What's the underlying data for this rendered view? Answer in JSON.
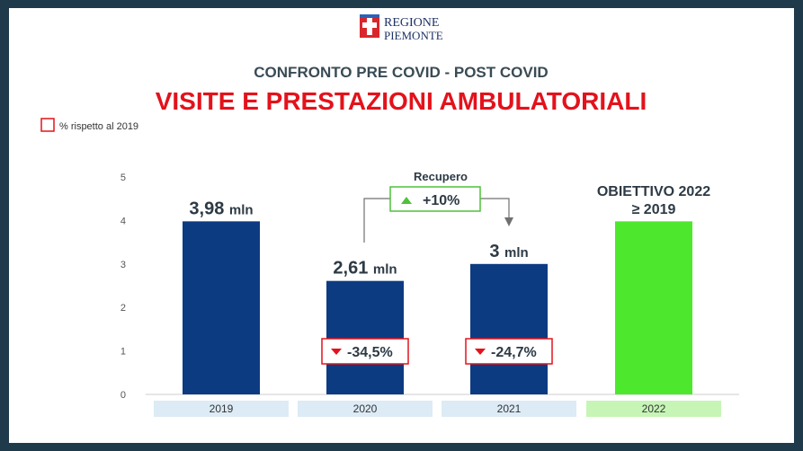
{
  "header": {
    "logo_line1": "REGIONE",
    "logo_line2": "PIEMONTE",
    "subtitle": "CONFRONTO PRE COVID - POST COVID",
    "title": "VISITE E PRESTAZIONI AMBULATORIALI",
    "legend_label": "% rispetto al 2019"
  },
  "colors": {
    "background": "#1f3a4b",
    "bar_blue": "#0d3b82",
    "bar_green": "#4de82d",
    "title_red": "#e3121b",
    "subtitle_gray": "#3a4b55",
    "cat_blue_bg": "#dcebf6",
    "cat_green_bg": "#c6f5b6"
  },
  "chart_data": {
    "type": "bar",
    "title": "VISITE E PRESTAZIONI AMBULATORIALI",
    "categories": [
      "2019",
      "2020",
      "2021",
      "2022"
    ],
    "values": [
      3.98,
      2.61,
      3,
      3.98
    ],
    "value_labels": [
      {
        "number": "3,98",
        "unit": "mln"
      },
      {
        "number": "2,61",
        "unit": "mln"
      },
      {
        "number": "3",
        "unit": "mln"
      },
      {
        "number": "",
        "unit": ""
      }
    ],
    "bar_colors": [
      "#0d3b82",
      "#0d3b82",
      "#0d3b82",
      "#4de82d"
    ],
    "ylim": [
      0,
      5
    ],
    "yticks": [
      0,
      1,
      2,
      3,
      4,
      5
    ],
    "pct_change": [
      null,
      "-34,5%",
      "-24,7%",
      null
    ],
    "target_label_line1": "OBIETTIVO 2022",
    "target_label_line2": "≥ 2019",
    "recovery_label": "Recupero",
    "recovery_value": "+10%"
  }
}
